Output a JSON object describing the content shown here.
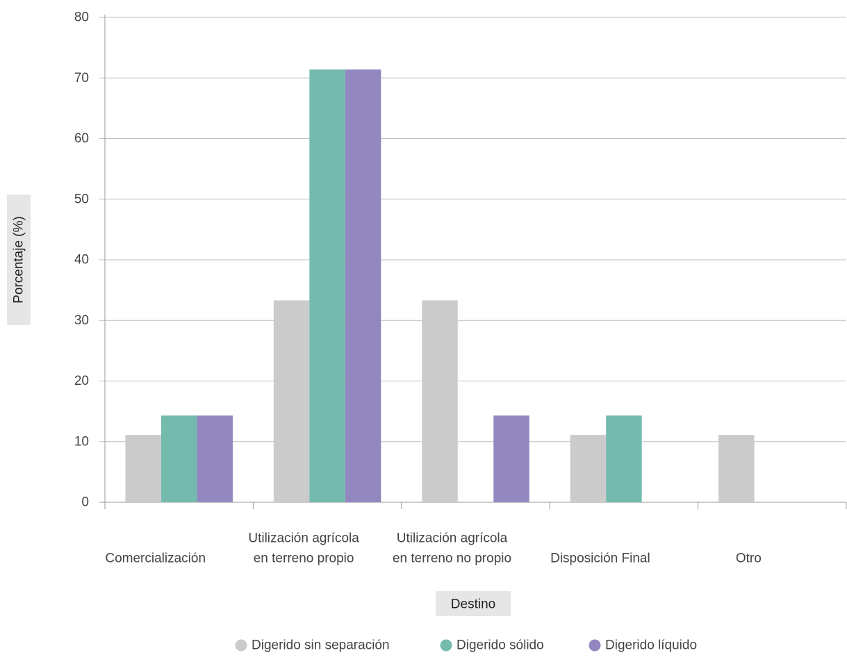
{
  "chart_data": {
    "type": "bar",
    "title": "",
    "xlabel": "Destino",
    "ylabel": "Porcentaje (%)",
    "ylim": [
      0,
      80
    ],
    "yticks": [
      0,
      10,
      20,
      30,
      40,
      50,
      60,
      70,
      80
    ],
    "categories": [
      [
        "Comercialización"
      ],
      [
        "Utilización agrícola",
        "en terreno propio"
      ],
      [
        "Utilización agrícola",
        "en terreno no propio"
      ],
      [
        "Disposición Final"
      ],
      [
        "Otro"
      ]
    ],
    "series": [
      {
        "name": "Digerido sin separación",
        "color": "#cbcbcb",
        "values": [
          11.1,
          33.3,
          33.3,
          11.1,
          11.1
        ]
      },
      {
        "name": "Digerido sólido",
        "color": "#74bbad",
        "values": [
          14.3,
          71.4,
          0,
          14.3,
          0
        ]
      },
      {
        "name": "Digerido líquido",
        "color": "#9387c0",
        "values": [
          14.3,
          71.4,
          14.3,
          0,
          0
        ]
      }
    ],
    "grid": true,
    "legend_position": "bottom"
  },
  "colors": {
    "axis_title_bg": "#e6e6e6",
    "grid": "#bfbfbf",
    "axis": "#9a9a9a"
  }
}
